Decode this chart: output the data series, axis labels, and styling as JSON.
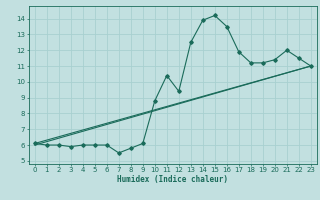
{
  "xlabel": "Humidex (Indice chaleur)",
  "xlim": [
    -0.5,
    23.5
  ],
  "ylim": [
    4.8,
    14.8
  ],
  "yticks": [
    5,
    6,
    7,
    8,
    9,
    10,
    11,
    12,
    13,
    14
  ],
  "xticks": [
    0,
    1,
    2,
    3,
    4,
    5,
    6,
    7,
    8,
    9,
    10,
    11,
    12,
    13,
    14,
    15,
    16,
    17,
    18,
    19,
    20,
    21,
    22,
    23
  ],
  "bg_color": "#c2e0e0",
  "line_color": "#1a6b5a",
  "grid_color": "#a8d0d0",
  "main_curve_x": [
    0,
    1,
    2,
    3,
    4,
    5,
    6,
    7,
    8,
    9,
    10,
    11,
    12,
    13,
    14,
    15,
    16,
    17,
    18,
    19,
    20,
    21,
    22,
    23
  ],
  "main_curve_y": [
    6.1,
    6.0,
    6.0,
    5.9,
    6.0,
    6.0,
    6.0,
    5.5,
    5.8,
    6.1,
    8.8,
    10.4,
    9.4,
    12.5,
    13.9,
    14.2,
    13.5,
    11.9,
    11.2,
    11.2,
    11.4,
    12.0,
    11.5,
    11.0
  ],
  "line1_x": [
    0,
    23
  ],
  "line1_y": [
    6.1,
    11.0
  ],
  "line2_x": [
    0,
    23
  ],
  "line2_y": [
    6.0,
    11.0
  ]
}
